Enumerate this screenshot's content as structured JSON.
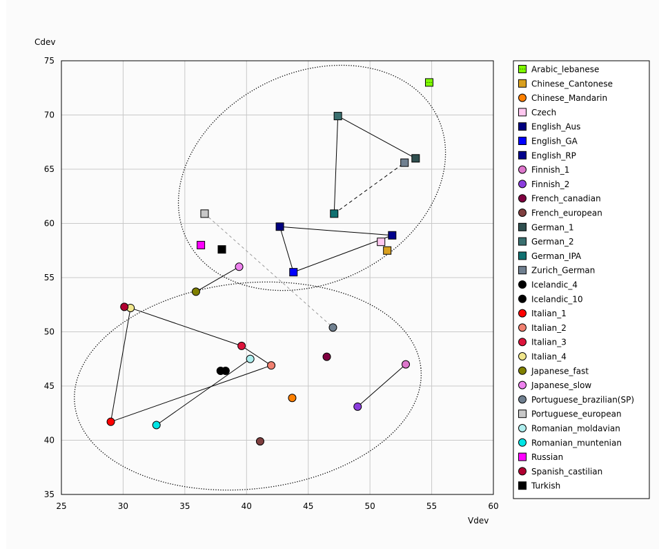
{
  "chart_data": {
    "type": "scatter",
    "xlabel": "Vdev",
    "ylabel": "Cdev",
    "xlim": [
      25,
      60
    ],
    "ylim": [
      35,
      75
    ],
    "xticks": [
      25,
      30,
      35,
      40,
      45,
      50,
      55,
      60
    ],
    "yticks": [
      35,
      40,
      45,
      50,
      55,
      60,
      65,
      70,
      75
    ],
    "grid": true,
    "legend_position": "right",
    "series": [
      {
        "name": "Arabic_lebanese",
        "marker": "square",
        "color": "#7fff00",
        "hatched": true,
        "points": [
          [
            54.8,
            73.0
          ]
        ]
      },
      {
        "name": "Chinese_Cantonese",
        "marker": "square",
        "color": "#d9a020",
        "points": [
          [
            51.4,
            57.5
          ]
        ]
      },
      {
        "name": "Chinese_Mandarin",
        "marker": "circle",
        "color": "#ff8000",
        "points": [
          [
            43.7,
            43.9
          ]
        ]
      },
      {
        "name": "Czech",
        "marker": "square",
        "color": "#ffc8f0",
        "points": [
          [
            50.9,
            58.3
          ]
        ]
      },
      {
        "name": "English_Aus",
        "marker": "square",
        "color": "#00007f",
        "points": [
          [
            42.7,
            59.7
          ]
        ]
      },
      {
        "name": "English_GA",
        "marker": "square",
        "color": "#0000ff",
        "points": [
          [
            43.8,
            55.5
          ]
        ]
      },
      {
        "name": "English_RP",
        "marker": "square",
        "color": "#00008b",
        "points": [
          [
            51.8,
            58.9
          ]
        ]
      },
      {
        "name": "Finnish_1",
        "marker": "circle",
        "color": "#dd77cc",
        "points": [
          [
            52.9,
            47.0
          ]
        ]
      },
      {
        "name": "Finnish_2",
        "marker": "circle",
        "color": "#8b3ddd",
        "points": [
          [
            49.0,
            43.1
          ]
        ]
      },
      {
        "name": "French_canadian",
        "marker": "circle",
        "color": "#7f0040",
        "points": [
          [
            46.5,
            47.7
          ]
        ]
      },
      {
        "name": "French_european",
        "marker": "circle",
        "color": "#7f3f3f",
        "points": [
          [
            41.1,
            39.9
          ]
        ]
      },
      {
        "name": "German_1",
        "marker": "square",
        "color": "#2f4f4f",
        "points": [
          [
            53.7,
            66.0
          ]
        ]
      },
      {
        "name": "German_2",
        "marker": "square",
        "color": "#3a6f6f",
        "points": [
          [
            47.4,
            69.9
          ]
        ]
      },
      {
        "name": "German_IPA",
        "marker": "square",
        "color": "#107070",
        "points": [
          [
            47.1,
            60.9
          ]
        ]
      },
      {
        "name": "Zurich_German",
        "marker": "square",
        "color": "#708090",
        "points": [
          [
            52.8,
            65.6
          ]
        ]
      },
      {
        "name": "Icelandic_4",
        "marker": "circle",
        "color": "#000000",
        "points": [
          [
            37.9,
            46.4
          ]
        ]
      },
      {
        "name": "Icelandic_10",
        "marker": "circle",
        "color": "#000000",
        "points": [
          [
            38.3,
            46.4
          ]
        ]
      },
      {
        "name": "Italian_1",
        "marker": "circle",
        "color": "#ff0000",
        "points": [
          [
            29.0,
            41.7
          ]
        ]
      },
      {
        "name": "Italian_2",
        "marker": "circle",
        "color": "#f08070",
        "points": [
          [
            42.0,
            46.9
          ]
        ]
      },
      {
        "name": "Italian_3",
        "marker": "circle",
        "color": "#dc143c",
        "points": [
          [
            39.6,
            48.7
          ]
        ]
      },
      {
        "name": "Italian_4",
        "marker": "circle",
        "color": "#f0e68c",
        "points": [
          [
            30.6,
            52.2
          ]
        ]
      },
      {
        "name": "Japanese_fast",
        "marker": "circle",
        "color": "#808000",
        "points": [
          [
            35.9,
            53.7
          ]
        ]
      },
      {
        "name": "Japanese_slow",
        "marker": "circle",
        "color": "#ee82ee",
        "points": [
          [
            39.4,
            56.0
          ]
        ]
      },
      {
        "name": "Portuguese_brazilian(SP)",
        "marker": "circle",
        "color": "#708090",
        "points": [
          [
            47.0,
            50.4
          ]
        ]
      },
      {
        "name": "Portuguese_european",
        "marker": "square",
        "color": "#c8c8c8",
        "points": [
          [
            36.6,
            60.9
          ]
        ]
      },
      {
        "name": "Romanian_moldavian",
        "marker": "circle",
        "color": "#afeeee",
        "points": [
          [
            40.3,
            47.5
          ]
        ]
      },
      {
        "name": "Romanian_muntenian",
        "marker": "circle",
        "color": "#00e5e5",
        "points": [
          [
            32.7,
            41.4
          ]
        ]
      },
      {
        "name": "Russian",
        "marker": "square",
        "color": "#ff00ff",
        "points": [
          [
            36.3,
            58.0
          ]
        ]
      },
      {
        "name": "Spanish_castilian",
        "marker": "circle",
        "color": "#b00030",
        "points": [
          [
            30.1,
            52.3
          ]
        ]
      },
      {
        "name": "Turkish",
        "marker": "square",
        "color": "#000000",
        "points": [
          [
            38.0,
            57.6
          ]
        ]
      }
    ],
    "connectors": [
      {
        "style": "solid",
        "points": [
          [
            29.0,
            41.7
          ],
          [
            30.6,
            52.2
          ]
        ]
      },
      {
        "style": "solid",
        "points": [
          [
            30.6,
            52.2
          ],
          [
            39.6,
            48.7
          ]
        ]
      },
      {
        "style": "solid",
        "points": [
          [
            39.6,
            48.7
          ],
          [
            42.0,
            46.9
          ]
        ]
      },
      {
        "style": "solid",
        "points": [
          [
            42.0,
            46.9
          ],
          [
            29.0,
            41.7
          ]
        ]
      },
      {
        "style": "solid",
        "points": [
          [
            32.7,
            41.4
          ],
          [
            40.3,
            47.5
          ]
        ]
      },
      {
        "style": "solid",
        "points": [
          [
            49.0,
            43.1
          ],
          [
            52.9,
            47.0
          ]
        ]
      },
      {
        "style": "solid",
        "points": [
          [
            35.9,
            53.7
          ],
          [
            39.4,
            56.0
          ]
        ]
      },
      {
        "style": "solid",
        "points": [
          [
            42.7,
            59.7
          ],
          [
            51.8,
            58.9
          ]
        ]
      },
      {
        "style": "solid",
        "points": [
          [
            42.7,
            59.7
          ],
          [
            43.8,
            55.5
          ]
        ]
      },
      {
        "style": "solid",
        "points": [
          [
            43.8,
            55.5
          ],
          [
            51.8,
            58.9
          ]
        ]
      },
      {
        "style": "solid",
        "points": [
          [
            47.4,
            69.9
          ],
          [
            53.7,
            66.0
          ]
        ]
      },
      {
        "style": "solid",
        "points": [
          [
            47.4,
            69.9
          ],
          [
            47.1,
            60.9
          ]
        ]
      },
      {
        "style": "dashed",
        "points": [
          [
            47.1,
            60.9
          ],
          [
            52.8,
            65.6
          ]
        ]
      },
      {
        "style": "dashed-light",
        "points": [
          [
            36.6,
            60.9
          ],
          [
            47.0,
            50.4
          ]
        ]
      }
    ],
    "ellipses": [
      {
        "cx": 45.3,
        "cy": 64.2,
        "rx": 11.3,
        "ry": 9.7,
        "angle_deg": 26,
        "style": "dotted"
      },
      {
        "cx": 40.1,
        "cy": 45.0,
        "rx": 14.1,
        "ry": 9.5,
        "angle_deg": 6,
        "style": "dotted"
      }
    ]
  }
}
